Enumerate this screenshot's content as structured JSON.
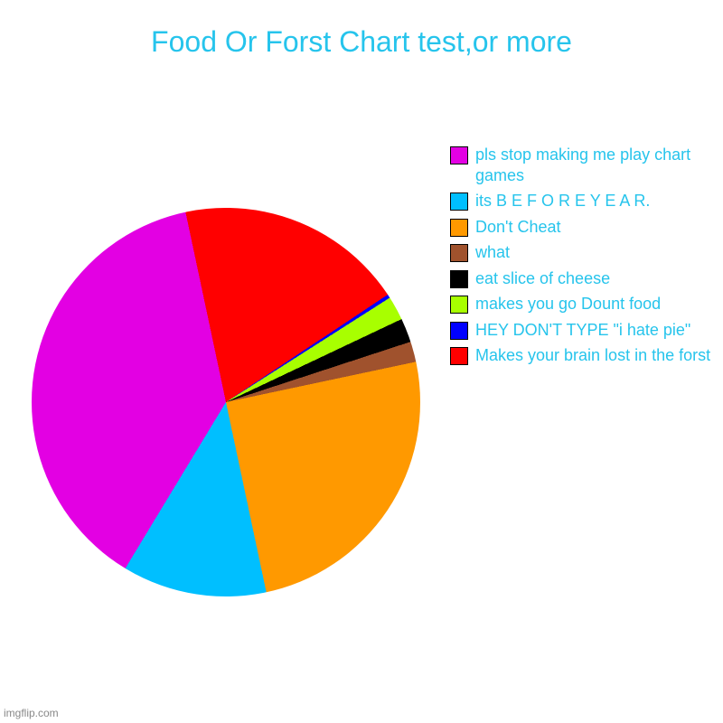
{
  "chart": {
    "type": "pie",
    "title": "Food Or Forst Chart test,or more",
    "title_color": "#26c4ec",
    "title_fontsize": 32,
    "background_color": "#ffffff",
    "text_color": "#26c4ec",
    "legend_fontsize": 18,
    "swatch_border": "#000000",
    "slices": [
      {
        "label": "Makes your brain lost in the forst",
        "color": "#ff0000",
        "value": 19
      },
      {
        "label": "HEY DON'T TYPE \"i hate pie\"",
        "color": "#0000ff",
        "value": 0.3
      },
      {
        "label": "makes you go Dount food",
        "color": "#a8ff00",
        "value": 2
      },
      {
        "label": "eat slice of cheese",
        "color": "#000000",
        "value": 2
      },
      {
        "label": "what",
        "color": "#a0522d",
        "value": 1.7
      },
      {
        "label": "Don't Cheat",
        "color": "#ff9900",
        "value": 25
      },
      {
        "label": "its B E F O R E Y E A R.",
        "color": "#00bfff",
        "value": 12
      },
      {
        "label": "pls stop making me play chart games",
        "color": "#e300e3",
        "value": 38
      }
    ],
    "start_angle_deg": -12
  },
  "watermark": "imgflip.com"
}
